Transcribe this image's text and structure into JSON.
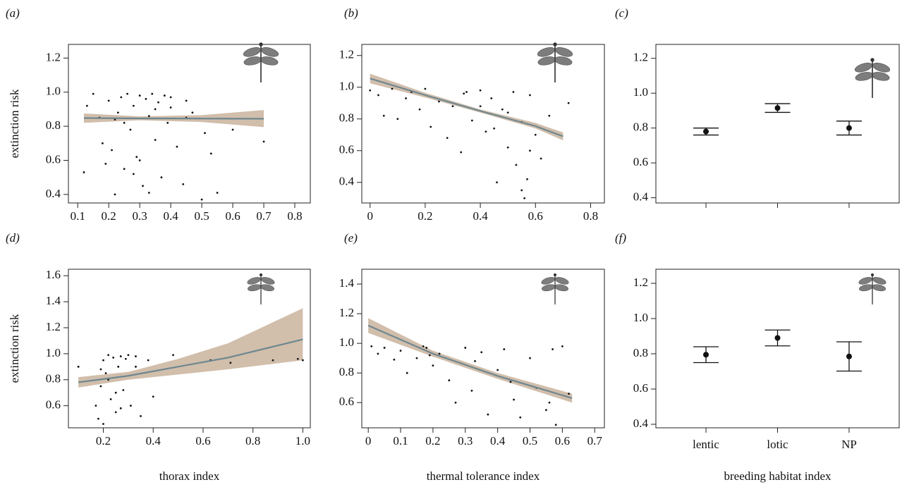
{
  "chart_data": [
    {
      "type": "scatter",
      "label": "(a)",
      "ylabel": "extinction risk",
      "xlim": [
        0.07,
        0.85
      ],
      "ylim": [
        0.35,
        1.28
      ],
      "xticks": [
        0.1,
        0.2,
        0.3,
        0.4,
        0.5,
        0.6,
        0.7,
        0.8
      ],
      "yticks": [
        0.4,
        0.6,
        0.8,
        {
          "value": 1.0,
          "label": "1.0"
        },
        1.2
      ],
      "point_color": "#111111",
      "line_color": "#6e8790",
      "band_color": "#c9b39c",
      "x": [
        0.12,
        0.13,
        0.15,
        0.17,
        0.18,
        0.19,
        0.2,
        0.21,
        0.22,
        0.23,
        0.24,
        0.25,
        0.26,
        0.27,
        0.28,
        0.29,
        0.3,
        0.31,
        0.32,
        0.33,
        0.34,
        0.35,
        0.36,
        0.37,
        0.38,
        0.39,
        0.4,
        0.42,
        0.44,
        0.45,
        0.47,
        0.5,
        0.51,
        0.53,
        0.55,
        0.6,
        0.7,
        0.3,
        0.25,
        0.35,
        0.22,
        0.4,
        0.33,
        0.28,
        0.45
      ],
      "y": [
        0.53,
        0.92,
        0.99,
        0.85,
        0.7,
        0.58,
        0.95,
        0.66,
        0.4,
        0.88,
        0.97,
        0.55,
        0.99,
        0.78,
        0.92,
        0.62,
        0.98,
        0.45,
        0.96,
        0.86,
        0.99,
        0.72,
        0.94,
        0.5,
        0.98,
        0.82,
        0.91,
        0.68,
        0.46,
        0.95,
        0.88,
        0.37,
        0.76,
        0.64,
        0.41,
        0.78,
        0.71,
        0.6,
        0.82,
        0.9,
        0.84,
        0.97,
        0.41,
        0.52,
        0.85
      ],
      "fit": {
        "x": [
          0.12,
          0.3,
          0.5,
          0.7
        ],
        "y": [
          0.848,
          0.846,
          0.845,
          0.844
        ],
        "lower": [
          0.82,
          0.835,
          0.825,
          0.795
        ],
        "upper": [
          0.875,
          0.858,
          0.865,
          0.895
        ]
      }
    },
    {
      "type": "scatter",
      "label": "(b)",
      "xlim": [
        -0.03,
        0.85
      ],
      "ylim": [
        0.27,
        1.27
      ],
      "xticks": [
        0,
        0.2,
        0.4,
        0.6,
        0.8
      ],
      "yticks": [
        0.4,
        0.6,
        0.8,
        {
          "value": 1.0,
          "label": "1.0"
        },
        1.2
      ],
      "point_color": "#111111",
      "line_color": "#6e8790",
      "band_color": "#c9b39c",
      "x": [
        0,
        0.03,
        0.05,
        0.08,
        0.1,
        0.13,
        0.15,
        0.18,
        0.2,
        0.22,
        0.25,
        0.28,
        0.3,
        0.33,
        0.35,
        0.37,
        0.4,
        0.42,
        0.44,
        0.46,
        0.48,
        0.5,
        0.52,
        0.53,
        0.55,
        0.56,
        0.57,
        0.58,
        0.6,
        0.62,
        0.65,
        0.72,
        0.34,
        0.45,
        0.5,
        0.55,
        0.58,
        0.4
      ],
      "y": [
        0.98,
        0.95,
        0.82,
        0.99,
        0.8,
        0.93,
        0.97,
        0.86,
        0.99,
        0.75,
        0.91,
        0.68,
        0.88,
        0.59,
        0.97,
        0.79,
        0.98,
        0.72,
        0.93,
        0.4,
        0.86,
        0.62,
        0.97,
        0.51,
        0.78,
        0.3,
        0.42,
        0.95,
        0.7,
        0.55,
        0.82,
        0.9,
        0.96,
        0.74,
        0.84,
        0.35,
        0.6,
        0.88
      ],
      "fit": {
        "x": [
          0,
          0.2,
          0.4,
          0.6,
          0.7
        ],
        "y": [
          1.055,
          0.95,
          0.85,
          0.755,
          0.69
        ],
        "lower": [
          1.025,
          0.935,
          0.84,
          0.74,
          0.665
        ],
        "upper": [
          1.085,
          0.965,
          0.86,
          0.775,
          0.715
        ]
      }
    },
    {
      "type": "errorbar",
      "label": "(c)",
      "ylim": [
        0.37,
        1.28
      ],
      "yticks": [
        0.4,
        0.6,
        0.8,
        {
          "value": 1.0,
          "label": "1.0"
        },
        1.2
      ],
      "point_color": "#111111",
      "values": [
        0.78,
        0.915,
        0.8
      ],
      "errors": [
        0.02,
        0.025,
        0.04
      ]
    },
    {
      "type": "scatter",
      "label": "(d)",
      "ylabel": "extinction risk",
      "xlabel": "thorax index",
      "xlim": [
        0.06,
        1.03
      ],
      "ylim": [
        0.43,
        1.65
      ],
      "xticks": [
        0.2,
        0.4,
        0.6,
        0.8,
        {
          "value": 1.0,
          "label": "1.0"
        }
      ],
      "yticks": [
        0.6,
        0.8,
        {
          "value": 1.0,
          "label": "1.0"
        },
        1.2,
        1.4,
        1.6
      ],
      "point_color": "#111111",
      "line_color": "#6e8790",
      "band_color": "#c9b39c",
      "x": [
        0.1,
        0.17,
        0.18,
        0.19,
        0.2,
        0.2,
        0.21,
        0.22,
        0.23,
        0.24,
        0.25,
        0.26,
        0.27,
        0.28,
        0.29,
        0.3,
        0.31,
        0.33,
        0.35,
        0.38,
        0.4,
        0.48,
        0.63,
        0.71,
        0.88,
        0.98,
        1.0,
        0.22,
        0.25,
        0.19,
        0.33,
        0.27
      ],
      "y": [
        0.9,
        0.6,
        0.5,
        0.75,
        0.46,
        0.95,
        0.85,
        0.99,
        0.65,
        0.97,
        0.55,
        0.9,
        0.98,
        0.72,
        0.96,
        0.99,
        0.6,
        0.98,
        0.52,
        0.95,
        0.67,
        0.99,
        0.95,
        0.93,
        0.95,
        0.96,
        0.95,
        0.8,
        0.7,
        0.88,
        0.9,
        0.58
      ],
      "fit": {
        "x": [
          0.1,
          0.3,
          0.5,
          0.7,
          1.0
        ],
        "y": [
          0.78,
          0.83,
          0.9,
          0.97,
          1.11
        ],
        "lower": [
          0.74,
          0.8,
          0.84,
          0.88,
          0.95
        ],
        "upper": [
          0.82,
          0.86,
          0.96,
          1.08,
          1.35
        ]
      }
    },
    {
      "type": "scatter",
      "label": "(e)",
      "xlabel": "thermal tolerance index",
      "xlim": [
        -0.02,
        0.73
      ],
      "ylim": [
        0.43,
        1.5
      ],
      "xticks": [
        0,
        0.1,
        0.2,
        0.3,
        0.4,
        0.5,
        0.6,
        0.7
      ],
      "yticks": [
        0.6,
        0.8,
        {
          "value": 1.0,
          "label": "1.0"
        },
        1.2,
        1.4
      ],
      "point_color": "#111111",
      "line_color": "#6e8790",
      "band_color": "#c9b39c",
      "x": [
        0.01,
        0.03,
        0.05,
        0.08,
        0.1,
        0.12,
        0.15,
        0.17,
        0.18,
        0.2,
        0.22,
        0.25,
        0.27,
        0.3,
        0.32,
        0.35,
        0.37,
        0.4,
        0.42,
        0.45,
        0.47,
        0.5,
        0.52,
        0.55,
        0.57,
        0.58,
        0.6,
        0.62,
        0.19,
        0.33,
        0.44,
        0.56
      ],
      "y": [
        0.98,
        0.93,
        0.97,
        0.89,
        0.95,
        0.8,
        0.9,
        0.98,
        0.97,
        0.85,
        0.93,
        0.75,
        0.6,
        0.97,
        0.68,
        0.94,
        0.52,
        0.82,
        0.96,
        0.62,
        0.5,
        0.9,
        0.7,
        0.55,
        0.96,
        0.45,
        0.98,
        0.66,
        0.92,
        0.88,
        0.74,
        0.6
      ],
      "fit": {
        "x": [
          0,
          0.2,
          0.4,
          0.63
        ],
        "y": [
          1.12,
          0.93,
          0.78,
          0.63
        ],
        "lower": [
          1.07,
          0.91,
          0.76,
          0.6
        ],
        "upper": [
          1.17,
          0.95,
          0.8,
          0.66
        ]
      }
    },
    {
      "type": "errorbar",
      "label": "(f)",
      "xlabel": "breeding habitat index",
      "categories": [
        "lentic",
        "lotic",
        "NP"
      ],
      "ylim": [
        0.38,
        1.28
      ],
      "yticks": [
        0.4,
        0.6,
        0.8,
        {
          "value": 1.0,
          "label": "1.0"
        },
        1.2
      ],
      "point_color": "#111111",
      "values": [
        0.795,
        0.89,
        0.785
      ],
      "errors": [
        0.045,
        0.045,
        0.083
      ]
    }
  ]
}
